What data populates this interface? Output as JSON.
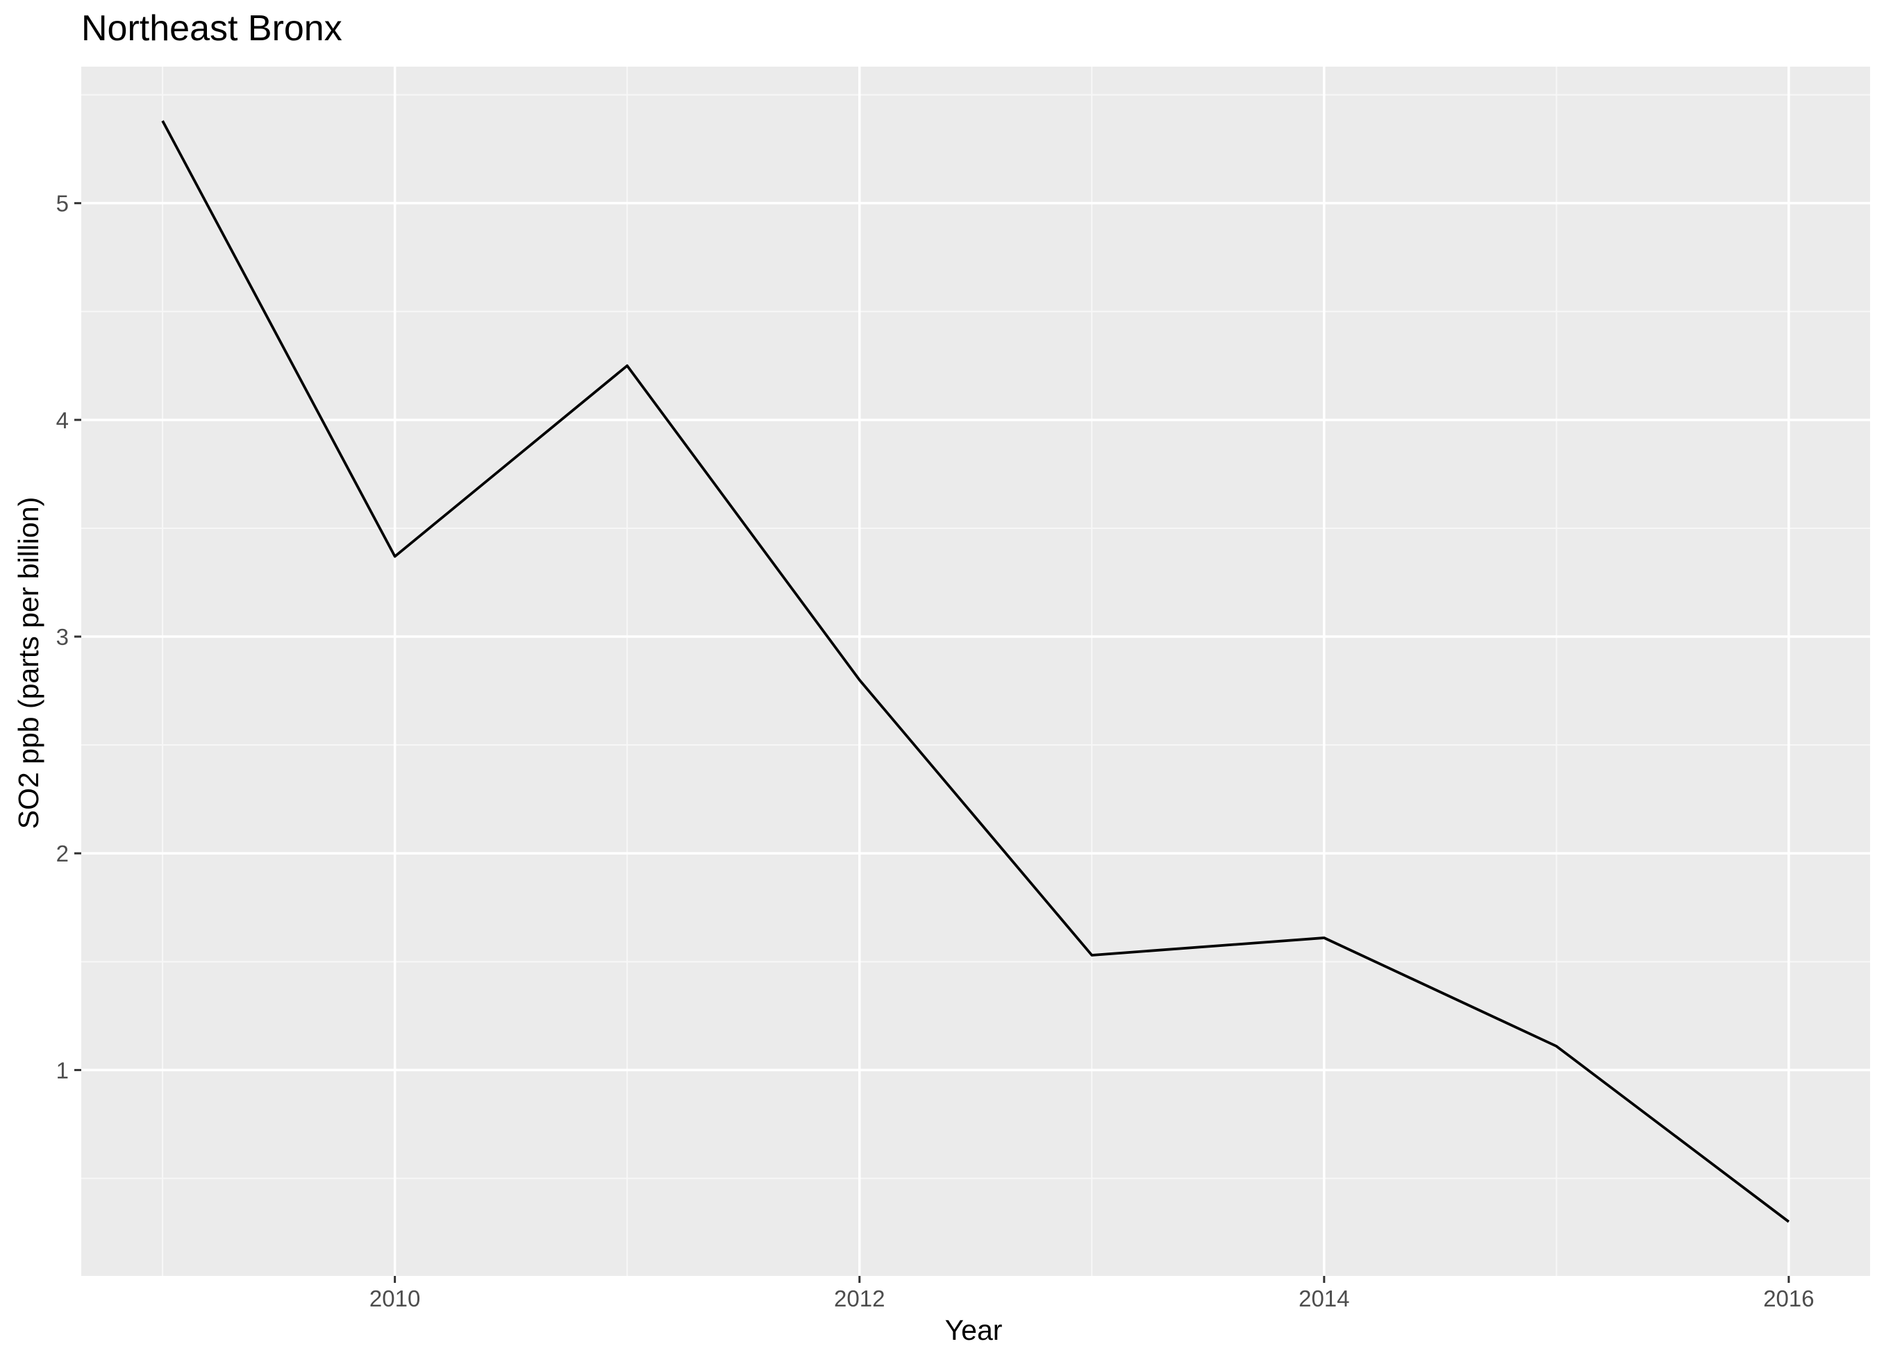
{
  "chart_data": {
    "type": "line",
    "title": "Northeast Bronx",
    "xlabel": "Year",
    "ylabel": "SO2 ppb (parts per billion)",
    "x": [
      2009,
      2010,
      2011,
      2012,
      2013,
      2014,
      2015,
      2016
    ],
    "series": [
      {
        "values": [
          5.38,
          3.37,
          4.25,
          2.8,
          1.53,
          1.61,
          1.11,
          0.3
        ]
      }
    ],
    "xlim": [
      2008.65,
      2016.35
    ],
    "ylim": [
      0.05,
      5.63
    ],
    "x_ticks": [
      2010,
      2012,
      2014,
      2016
    ],
    "x_tick_labels": [
      "2010",
      "2012",
      "2014",
      "2016"
    ],
    "y_ticks": [
      1,
      2,
      3,
      4,
      5
    ],
    "y_tick_labels": [
      "1",
      "2",
      "3",
      "4",
      "5"
    ],
    "grid": true,
    "legend": "none",
    "colors": {
      "panel_background": "#ebebeb",
      "grid_major": "#ffffff",
      "grid_minor": "#f7f7f7",
      "line": "#000000",
      "tick_mark": "#333333"
    }
  }
}
